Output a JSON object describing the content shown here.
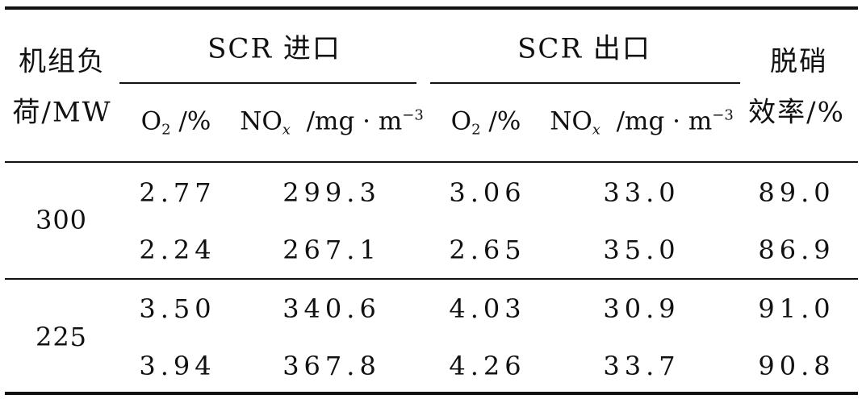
{
  "header": {
    "load_line1": "机组负",
    "load_line2": "荷/MW",
    "scr_inlet": "SCR 进口",
    "scr_outlet": "SCR 出口",
    "eff_line1": "脱硝",
    "eff_line2": "效率/%",
    "o2_base": "O",
    "o2_sub": "2",
    "o2_unit": " /%",
    "nox_base": "NO",
    "nox_sub": "x",
    "nox_unit": "  /mg · m",
    "nox_sup": "−3"
  },
  "rows": [
    {
      "load": "300",
      "in_o2": "2.77",
      "in_nox": "299.3",
      "out_o2": "3.06",
      "out_nox": "33.0",
      "eff": "89.0"
    },
    {
      "load": "",
      "in_o2": "2.24",
      "in_nox": "267.1",
      "out_o2": "2.65",
      "out_nox": "35.0",
      "eff": "86.9"
    },
    {
      "load": "225",
      "in_o2": "3.50",
      "in_nox": "340.6",
      "out_o2": "4.03",
      "out_nox": "30.9",
      "eff": "91.0"
    },
    {
      "load": "",
      "in_o2": "3.94",
      "in_nox": "367.8",
      "out_o2": "4.26",
      "out_nox": "33.7",
      "eff": "90.8"
    }
  ]
}
